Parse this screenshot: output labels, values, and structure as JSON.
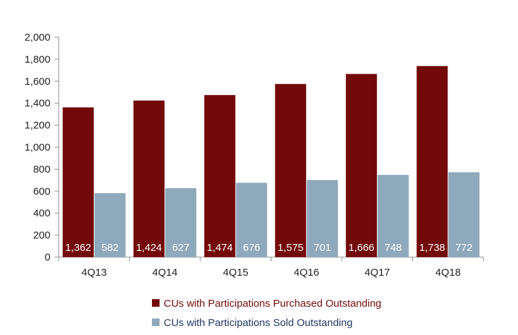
{
  "chart_data": {
    "type": "bar",
    "title": "",
    "xlabel": "",
    "ylabel": "",
    "ylim": [
      0,
      2000
    ],
    "y_ticks": [
      0,
      200,
      400,
      600,
      800,
      1000,
      1200,
      1400,
      1600,
      1800,
      2000
    ],
    "y_tick_labels": [
      "0",
      "200",
      "400",
      "600",
      "800",
      "1,000",
      "1,200",
      "1,400",
      "1,600",
      "1,800",
      "2,000"
    ],
    "grid": false,
    "legend_position": "bottom",
    "categories": [
      "4Q13",
      "4Q14",
      "4Q15",
      "4Q16",
      "4Q17",
      "4Q18"
    ],
    "series": [
      {
        "name": "CUs with Participations Purchased Outstanding",
        "color": "#730A0A",
        "values": [
          1362,
          1424,
          1474,
          1575,
          1666,
          1738
        ],
        "labels": [
          "1,362",
          "1,424",
          "1,474",
          "1,575",
          "1,666",
          "1,738"
        ]
      },
      {
        "name": "CUs with Participations Sold Outstanding",
        "color": "#8FA9BC",
        "values": [
          582,
          627,
          676,
          701,
          748,
          772
        ],
        "labels": [
          "582",
          "627",
          "676",
          "701",
          "748",
          "772"
        ]
      }
    ]
  }
}
